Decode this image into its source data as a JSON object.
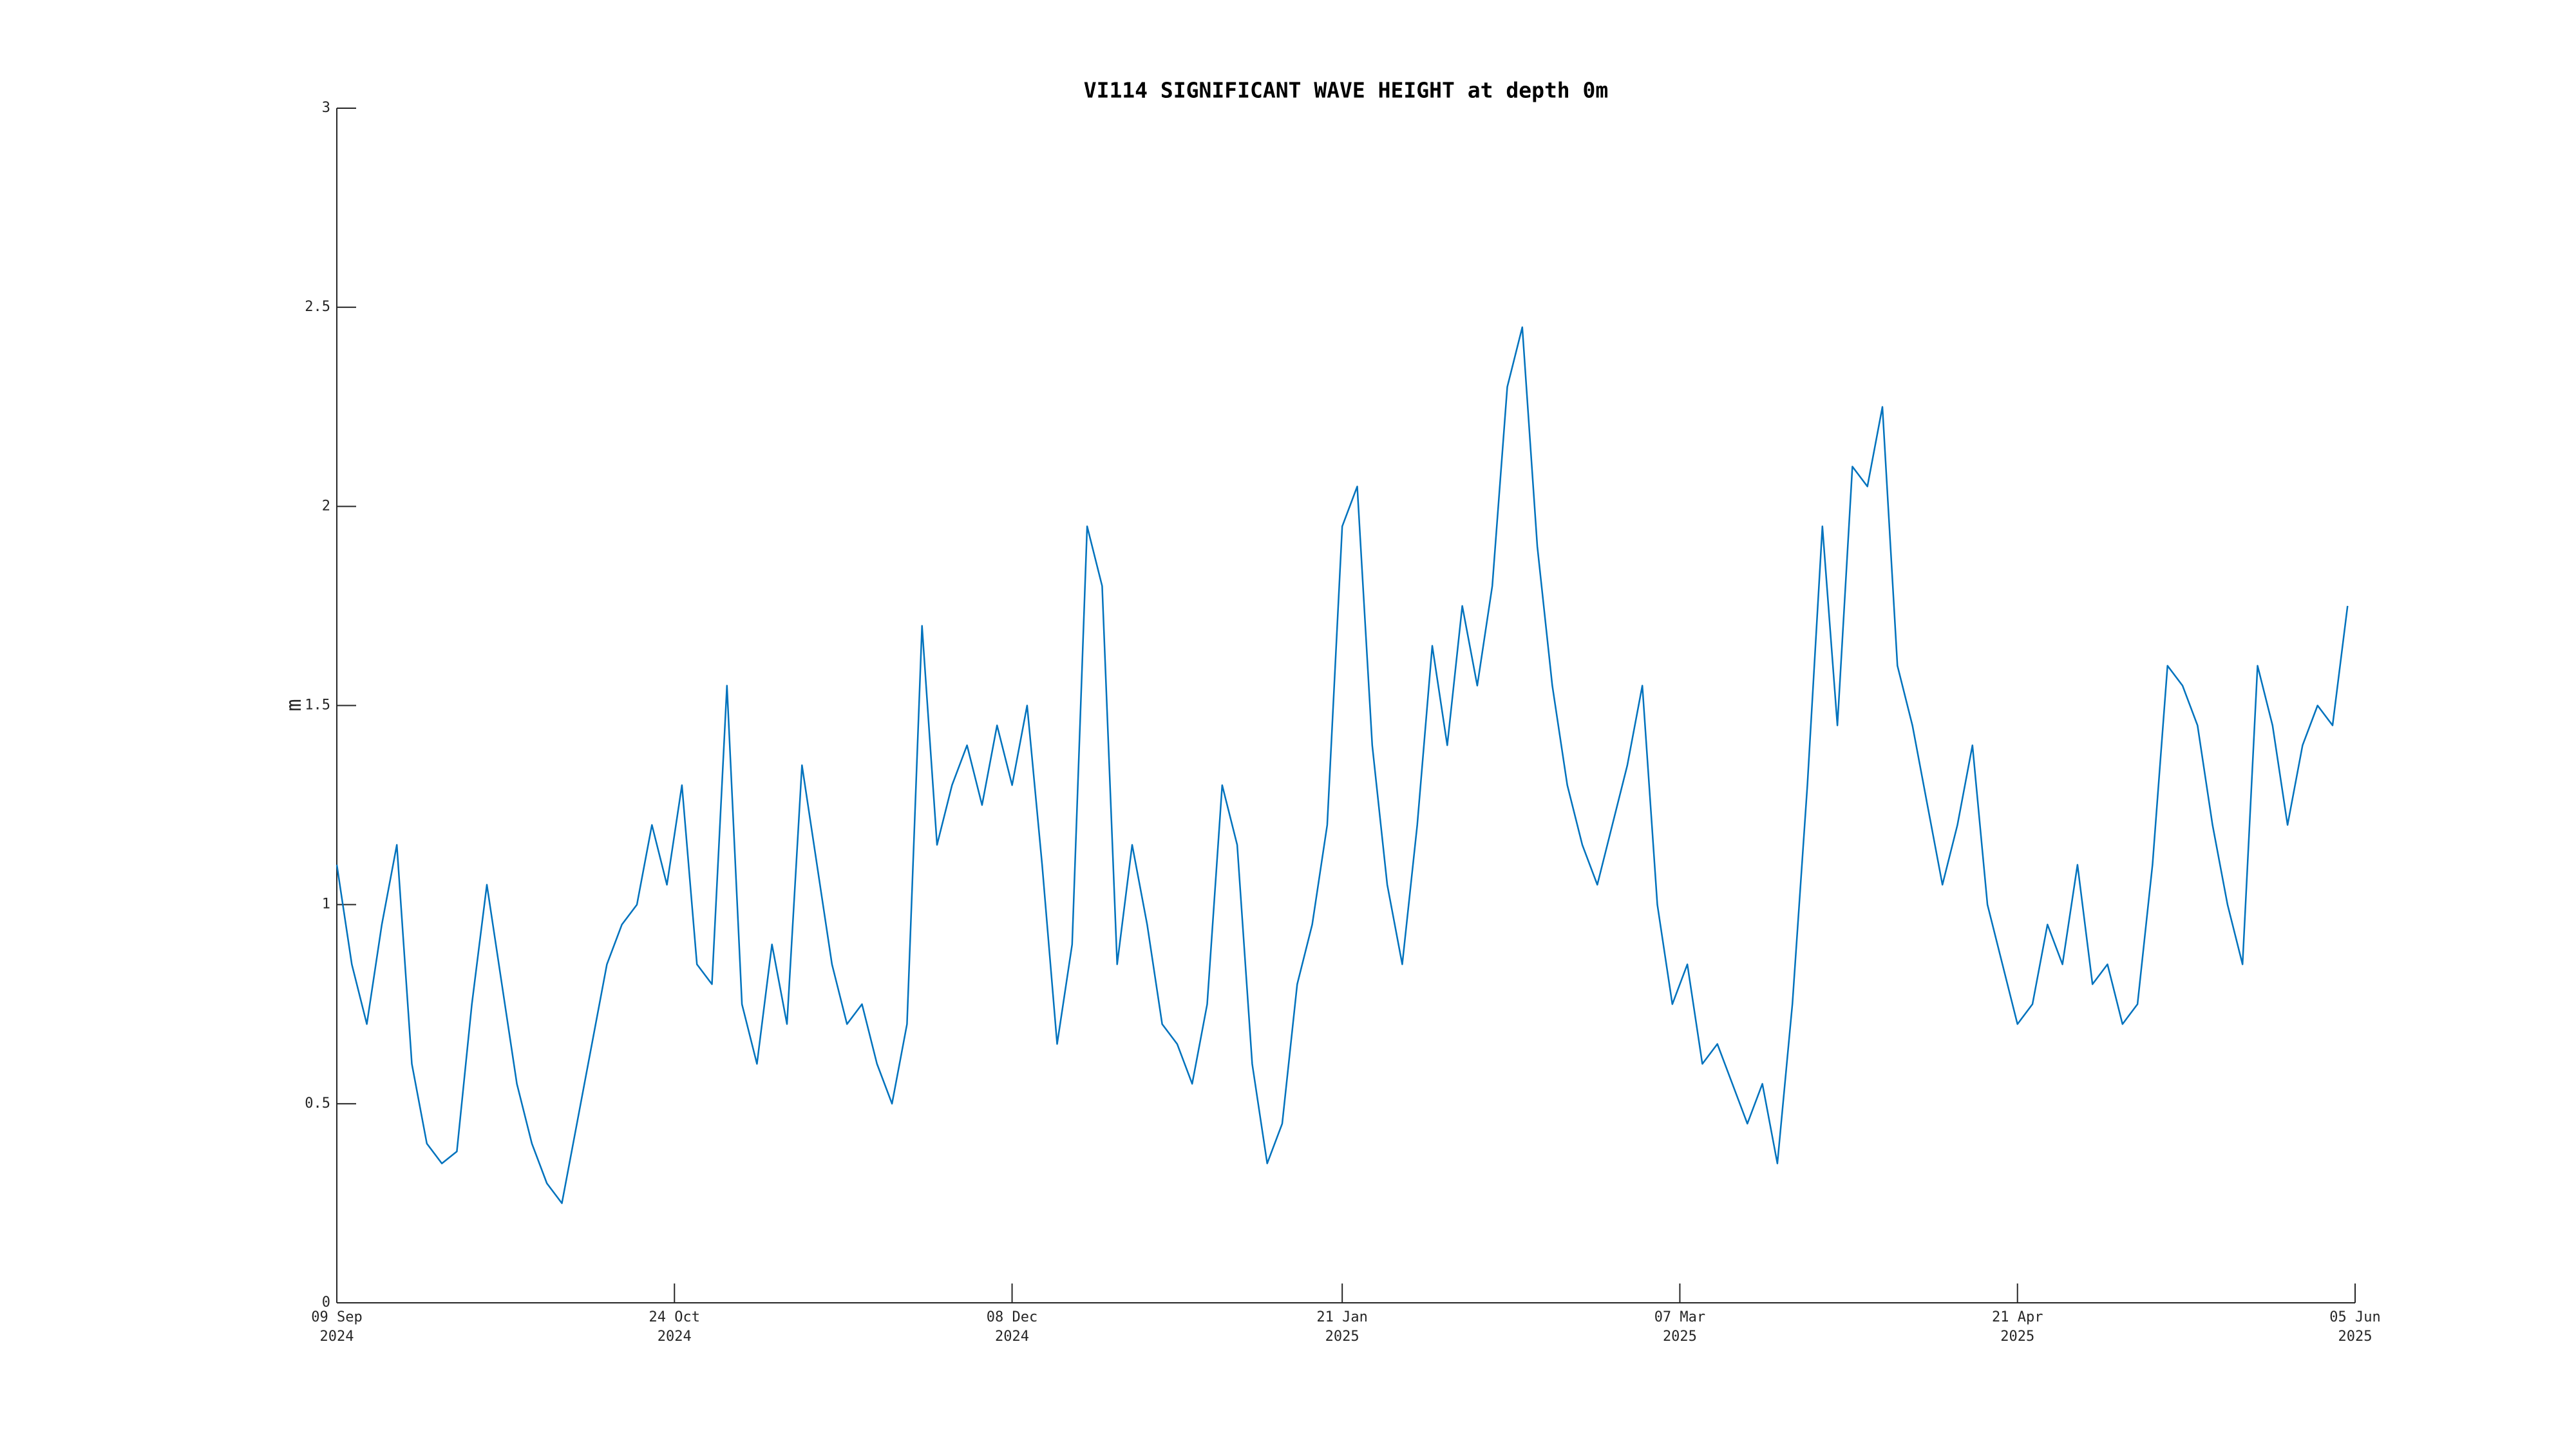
{
  "chart_data": {
    "type": "line",
    "title": "VI114 SIGNIFICANT WAVE HEIGHT at depth 0m",
    "y_label": "m",
    "x": [
      "2024-09-09",
      "2024-09-11",
      "2024-09-13",
      "2024-09-15",
      "2024-09-17",
      "2024-09-19",
      "2024-09-21",
      "2024-09-23",
      "2024-09-25",
      "2024-09-27",
      "2024-09-29",
      "2024-10-01",
      "2024-10-03",
      "2024-10-05",
      "2024-10-07",
      "2024-10-09",
      "2024-10-11",
      "2024-10-13",
      "2024-10-15",
      "2024-10-17",
      "2024-10-19",
      "2024-10-21",
      "2024-10-23",
      "2024-10-25",
      "2024-10-27",
      "2024-10-29",
      "2024-10-31",
      "2024-11-02",
      "2024-11-04",
      "2024-11-06",
      "2024-11-08",
      "2024-11-10",
      "2024-11-12",
      "2024-11-14",
      "2024-11-16",
      "2024-11-18",
      "2024-11-20",
      "2024-11-22",
      "2024-11-24",
      "2024-11-26",
      "2024-11-28",
      "2024-11-30",
      "2024-12-02",
      "2024-12-04",
      "2024-12-06",
      "2024-12-08",
      "2024-12-10",
      "2024-12-12",
      "2024-12-14",
      "2024-12-16",
      "2024-12-18",
      "2024-12-20",
      "2024-12-22",
      "2024-12-24",
      "2024-12-26",
      "2024-12-28",
      "2024-12-30",
      "2025-01-01",
      "2025-01-03",
      "2025-01-05",
      "2025-01-07",
      "2025-01-09",
      "2025-01-11",
      "2025-01-13",
      "2025-01-15",
      "2025-01-17",
      "2025-01-19",
      "2025-01-21",
      "2025-01-23",
      "2025-01-25",
      "2025-01-27",
      "2025-01-29",
      "2025-01-31",
      "2025-02-02",
      "2025-02-04",
      "2025-02-06",
      "2025-02-08",
      "2025-02-10",
      "2025-02-12",
      "2025-02-14",
      "2025-02-16",
      "2025-02-18",
      "2025-02-20",
      "2025-02-22",
      "2025-02-24",
      "2025-02-26",
      "2025-02-28",
      "2025-03-02",
      "2025-03-04",
      "2025-03-06",
      "2025-03-08",
      "2025-03-10",
      "2025-03-12",
      "2025-03-14",
      "2025-03-16",
      "2025-03-18",
      "2025-03-20",
      "2025-03-22",
      "2025-03-24",
      "2025-03-26",
      "2025-03-28",
      "2025-03-30",
      "2025-04-01",
      "2025-04-03",
      "2025-04-05",
      "2025-04-07",
      "2025-04-09",
      "2025-04-11",
      "2025-04-13",
      "2025-04-15",
      "2025-04-17",
      "2025-04-19",
      "2025-04-21",
      "2025-04-23",
      "2025-04-25",
      "2025-04-27",
      "2025-04-29",
      "2025-05-01",
      "2025-05-03",
      "2025-05-05",
      "2025-05-07",
      "2025-05-09",
      "2025-05-11",
      "2025-05-13",
      "2025-05-15",
      "2025-05-17",
      "2025-05-19",
      "2025-05-21",
      "2025-05-23",
      "2025-05-25",
      "2025-05-27",
      "2025-05-29",
      "2025-05-31",
      "2025-06-02",
      "2025-06-04"
    ],
    "series": [
      {
        "color": "#0072bd",
        "values": [
          1.1,
          0.85,
          0.7,
          0.95,
          1.15,
          0.6,
          0.4,
          0.35,
          0.38,
          0.75,
          1.05,
          0.8,
          0.55,
          0.4,
          0.3,
          0.25,
          0.45,
          0.65,
          0.85,
          0.95,
          1.0,
          1.2,
          1.05,
          1.3,
          0.85,
          0.8,
          1.55,
          0.75,
          0.6,
          0.9,
          0.7,
          1.35,
          1.1,
          0.85,
          0.7,
          0.75,
          0.6,
          0.5,
          0.7,
          1.7,
          1.15,
          1.3,
          1.4,
          1.25,
          1.45,
          1.3,
          1.5,
          1.1,
          0.65,
          0.9,
          1.95,
          1.8,
          0.85,
          1.15,
          0.95,
          0.7,
          0.65,
          0.55,
          0.75,
          1.3,
          1.15,
          0.6,
          0.35,
          0.45,
          0.8,
          0.95,
          1.2,
          1.95,
          2.05,
          1.4,
          1.05,
          0.85,
          1.2,
          1.65,
          1.4,
          1.75,
          1.55,
          1.8,
          2.3,
          2.45,
          1.9,
          1.55,
          1.3,
          1.15,
          1.05,
          1.2,
          1.35,
          1.55,
          1.0,
          0.75,
          0.85,
          0.6,
          0.65,
          0.55,
          0.45,
          0.55,
          0.35,
          0.75,
          1.3,
          1.95,
          1.45,
          2.1,
          2.05,
          2.25,
          1.6,
          1.45,
          1.25,
          1.05,
          1.2,
          1.4,
          1.0,
          0.85,
          0.7,
          0.75,
          0.95,
          0.85,
          1.1,
          0.8,
          0.85,
          0.7,
          0.75,
          1.1,
          1.6,
          1.55,
          1.45,
          1.2,
          1.0,
          0.85,
          1.6,
          1.45,
          1.2,
          1.4,
          1.5,
          1.45,
          1.75
        ]
      }
    ],
    "xlim": [
      "2024-09-09",
      "2025-06-05"
    ],
    "xticks": [
      {
        "value": "2024-09-09",
        "label": "09 Sep\n2024"
      },
      {
        "value": "2024-10-24",
        "label": "24 Oct\n2024"
      },
      {
        "value": "2024-12-08",
        "label": "08 Dec\n2024"
      },
      {
        "value": "2025-01-21",
        "label": "21 Jan\n2025"
      },
      {
        "value": "2025-03-07",
        "label": "07 Mar\n2025"
      },
      {
        "value": "2025-04-21",
        "label": "21 Apr\n2025"
      },
      {
        "value": "2025-06-05",
        "label": "05 Jun\n2025"
      }
    ],
    "ylim": [
      0,
      3
    ],
    "yticks": [
      0,
      0.5,
      1,
      1.5,
      2,
      2.5,
      3
    ],
    "grid": false
  }
}
